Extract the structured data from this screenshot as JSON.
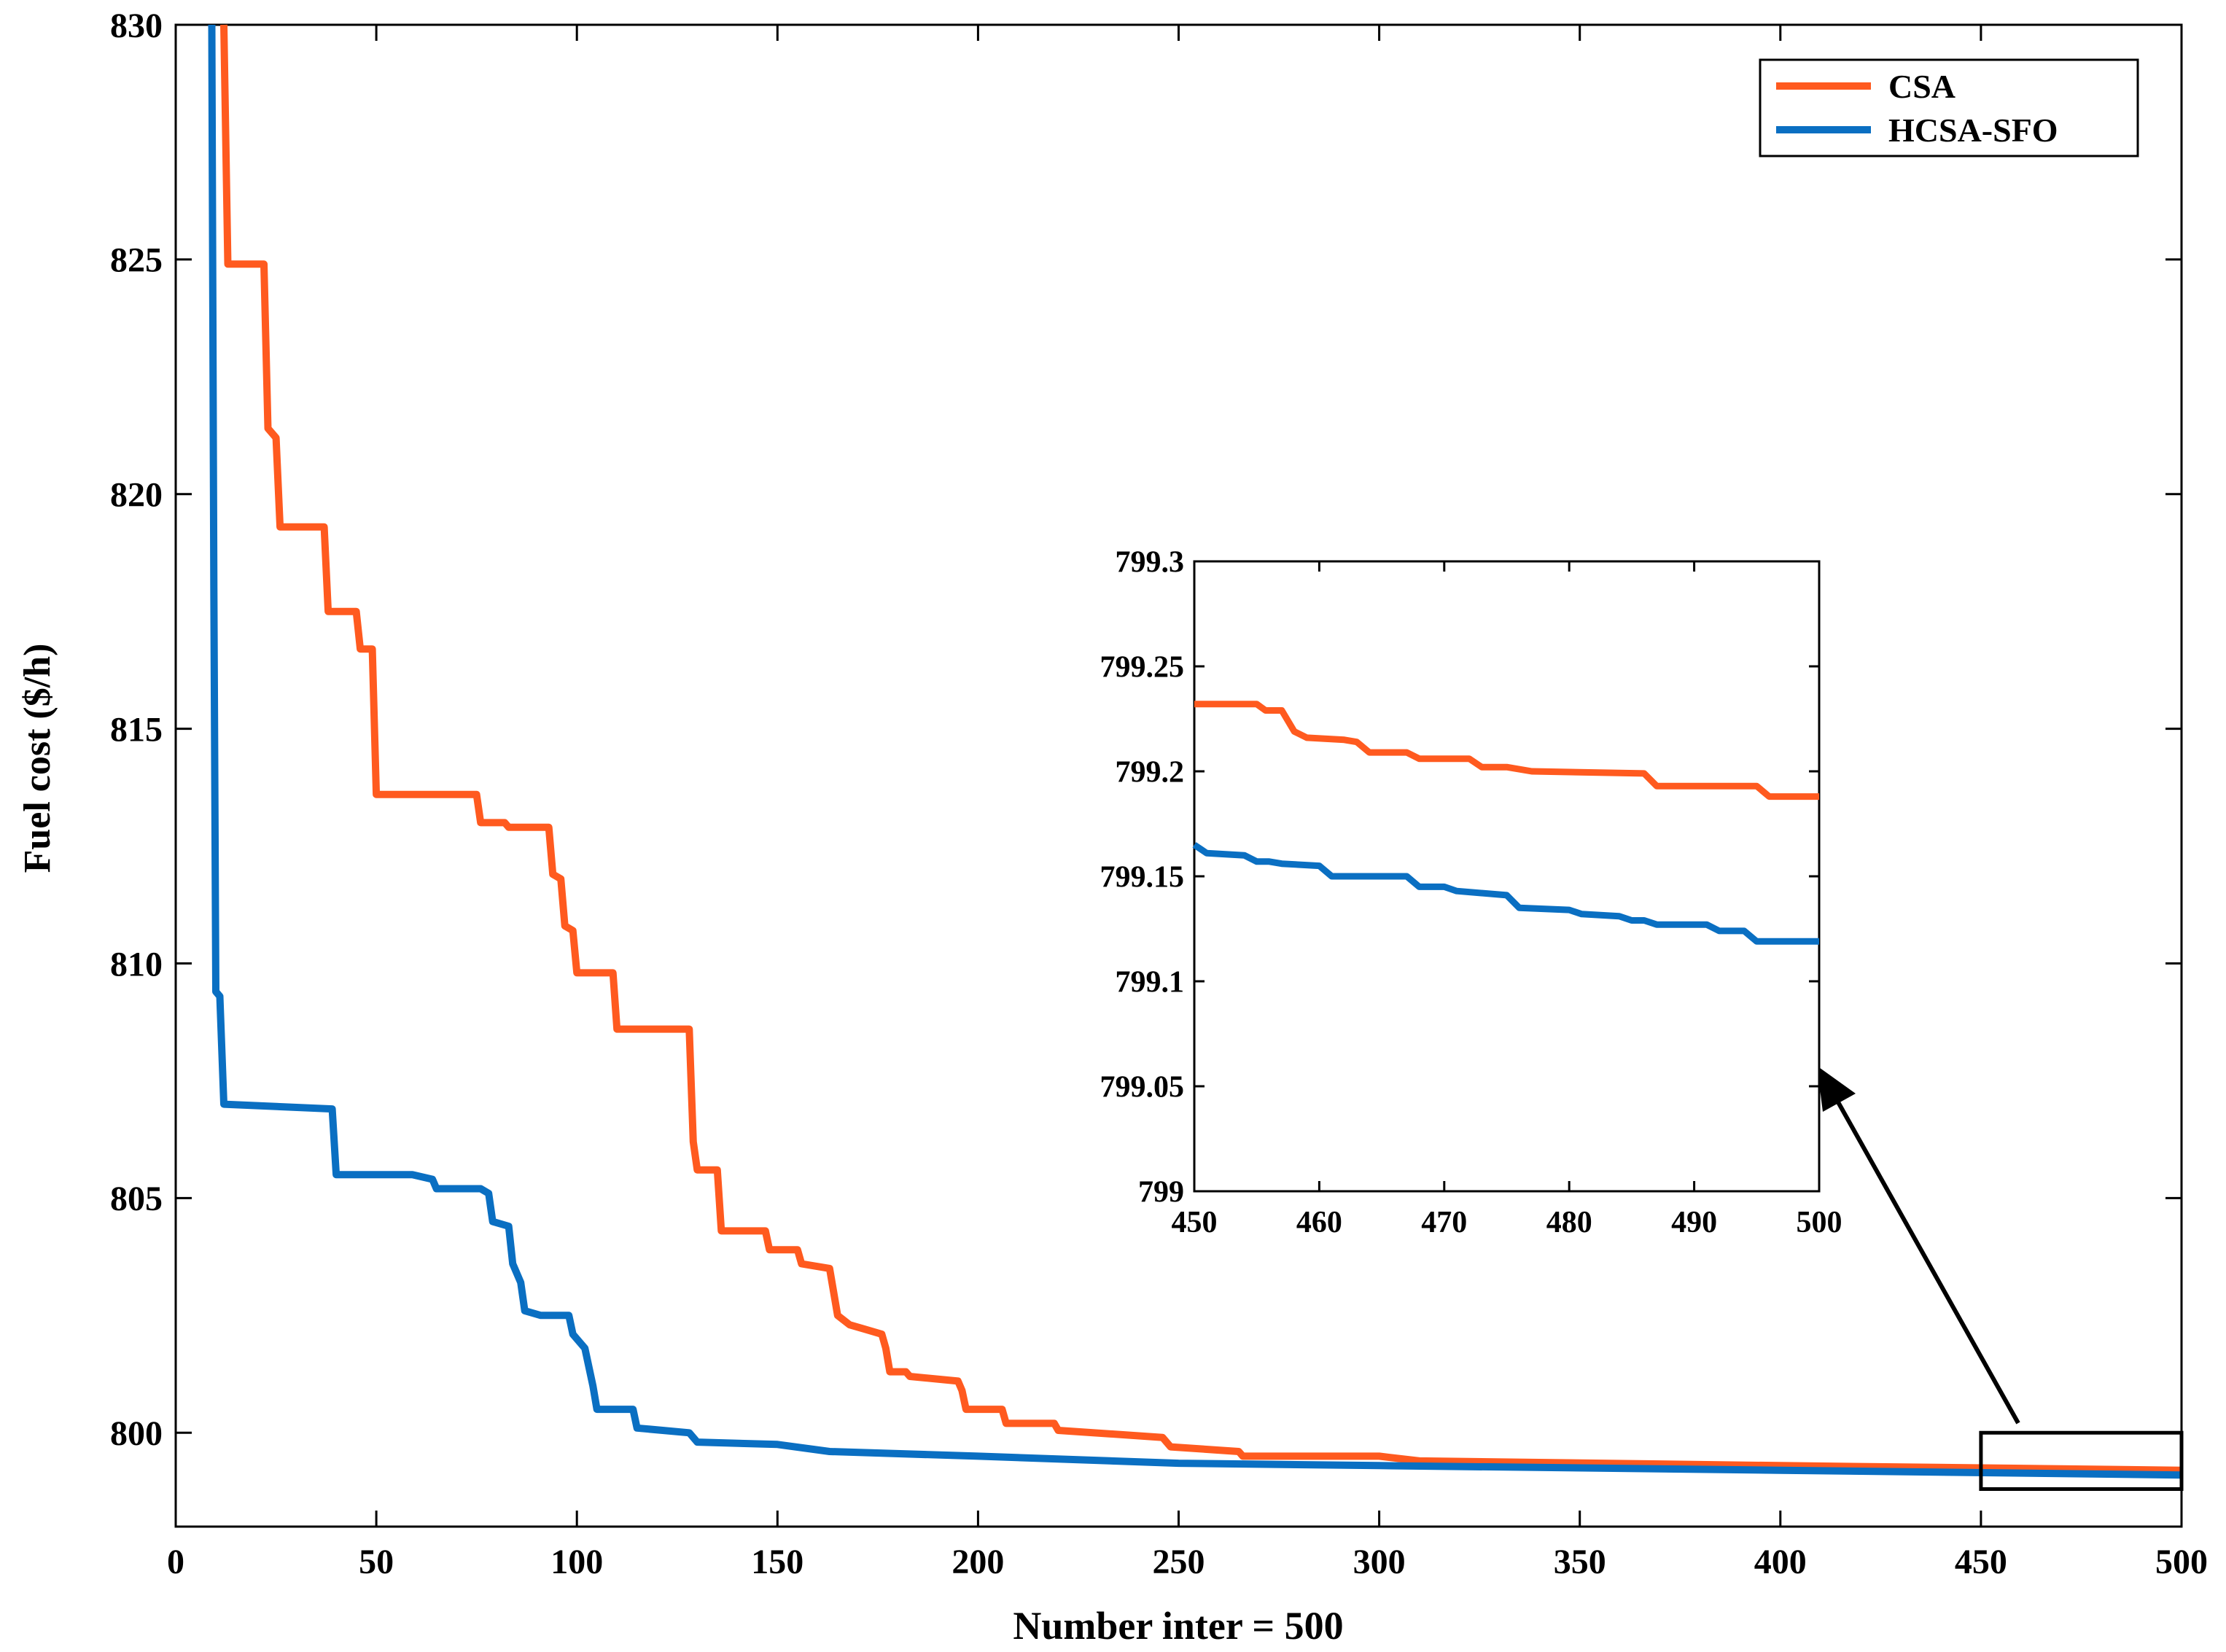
{
  "chart_data": [
    {
      "id": "main",
      "type": "line",
      "title": "",
      "xlabel": "Number inter = 500",
      "ylabel": "Fuel cost ($/h)",
      "xlim": [
        0,
        500
      ],
      "ylim": [
        798,
        830
      ],
      "xticks": [
        0,
        50,
        100,
        150,
        200,
        250,
        300,
        350,
        400,
        450,
        500
      ],
      "yticks": [
        800,
        805,
        810,
        815,
        820,
        825,
        830
      ],
      "legend_position": "top-right",
      "grid": false,
      "series": [
        {
          "name": "CSA",
          "color": "#ff5a1f",
          "points": [
            [
              12,
              830
            ],
            [
              13,
              824.9
            ],
            [
              22,
              824.9
            ],
            [
              23,
              821.4
            ],
            [
              25,
              821.2
            ],
            [
              26,
              819.3
            ],
            [
              37,
              819.3
            ],
            [
              38,
              817.5
            ],
            [
              45,
              817.5
            ],
            [
              46,
              816.7
            ],
            [
              49,
              816.7
            ],
            [
              50,
              813.6
            ],
            [
              75,
              813.6
            ],
            [
              76,
              813.0
            ],
            [
              82,
              813.0
            ],
            [
              83,
              812.9
            ],
            [
              93,
              812.9
            ],
            [
              94,
              811.9
            ],
            [
              96,
              811.8
            ],
            [
              97,
              810.8
            ],
            [
              99,
              810.7
            ],
            [
              100,
              809.8
            ],
            [
              109,
              809.8
            ],
            [
              110,
              808.6
            ],
            [
              128,
              808.6
            ],
            [
              129,
              806.2
            ],
            [
              130,
              805.6
            ],
            [
              135,
              805.6
            ],
            [
              136,
              804.3
            ],
            [
              147,
              804.3
            ],
            [
              148,
              803.9
            ],
            [
              155,
              803.9
            ],
            [
              156,
              803.6
            ],
            [
              163,
              803.5
            ],
            [
              164,
              803.0
            ],
            [
              165,
              802.5
            ],
            [
              168,
              802.3
            ],
            [
              172,
              802.2
            ],
            [
              176,
              802.1
            ],
            [
              177,
              801.8
            ],
            [
              178,
              801.3
            ],
            [
              182,
              801.3
            ],
            [
              183,
              801.2
            ],
            [
              195,
              801.1
            ],
            [
              196,
              800.9
            ],
            [
              197,
              800.5
            ],
            [
              206,
              800.5
            ],
            [
              207,
              800.2
            ],
            [
              219,
              800.2
            ],
            [
              220,
              800.05
            ],
            [
              246,
              799.9
            ],
            [
              248,
              799.7
            ],
            [
              265,
              799.6
            ],
            [
              266,
              799.5
            ],
            [
              300,
              799.5
            ],
            [
              310,
              799.4
            ],
            [
              400,
              799.3
            ],
            [
              500,
              799.2
            ]
          ]
        },
        {
          "name": "HCSA-SFO",
          "color": "#0a6fc2",
          "points": [
            [
              9,
              830
            ],
            [
              9.5,
              818
            ],
            [
              10,
              809.4
            ],
            [
              11,
              809.3
            ],
            [
              12,
              807.0
            ],
            [
              39,
              806.9
            ],
            [
              40,
              805.5
            ],
            [
              59,
              805.5
            ],
            [
              64,
              805.4
            ],
            [
              65,
              805.2
            ],
            [
              76,
              805.2
            ],
            [
              78,
              805.1
            ],
            [
              79,
              804.5
            ],
            [
              83,
              804.4
            ],
            [
              84,
              803.6
            ],
            [
              86,
              803.2
            ],
            [
              87,
              802.6
            ],
            [
              91,
              802.5
            ],
            [
              98,
              802.5
            ],
            [
              99,
              802.1
            ],
            [
              102,
              801.8
            ],
            [
              104,
              801.0
            ],
            [
              105,
              800.5
            ],
            [
              114,
              800.5
            ],
            [
              115,
              800.1
            ],
            [
              128,
              800.0
            ],
            [
              130,
              799.8
            ],
            [
              150,
              799.75
            ],
            [
              163,
              799.6
            ],
            [
              200,
              799.5
            ],
            [
              250,
              799.35
            ],
            [
              300,
              799.3
            ],
            [
              400,
              799.2
            ],
            [
              500,
              799.1
            ]
          ]
        }
      ],
      "zoom_box": {
        "xlim": [
          450,
          500
        ],
        "ylim": [
          798.8,
          800
        ]
      }
    },
    {
      "id": "inset",
      "type": "line",
      "title": "",
      "xlim": [
        450,
        500
      ],
      "ylim": [
        799,
        799.3
      ],
      "xticks": [
        450,
        460,
        470,
        480,
        490,
        500
      ],
      "yticks": [
        799,
        799.05,
        799.1,
        799.15,
        799.2,
        799.25,
        799.3
      ],
      "ytick_labels": [
        "799",
        "799.05",
        "799.1",
        "799.15",
        "799.2",
        "799.25",
        "799.3"
      ],
      "series": [
        {
          "name": "CSA",
          "color": "#ff5a1f",
          "points": [
            [
              450,
              799.232
            ],
            [
              455,
              799.232
            ],
            [
              455.7,
              799.229
            ],
            [
              457,
              799.229
            ],
            [
              458,
              799.219
            ],
            [
              459,
              799.216
            ],
            [
              462,
              799.215
            ],
            [
              463,
              799.214
            ],
            [
              464,
              799.209
            ],
            [
              467,
              799.209
            ],
            [
              468,
              799.206
            ],
            [
              472,
              799.206
            ],
            [
              473,
              799.202
            ],
            [
              475,
              799.202
            ],
            [
              477,
              799.2
            ],
            [
              486,
              799.199
            ],
            [
              487,
              799.193
            ],
            [
              495,
              799.193
            ],
            [
              496,
              799.188
            ],
            [
              500,
              799.188
            ]
          ]
        },
        {
          "name": "HCSA-SFO",
          "color": "#0a6fc2",
          "points": [
            [
              450,
              799.165
            ],
            [
              451,
              799.161
            ],
            [
              454,
              799.16
            ],
            [
              455,
              799.157
            ],
            [
              456,
              799.157
            ],
            [
              457,
              799.156
            ],
            [
              460,
              799.155
            ],
            [
              461,
              799.15
            ],
            [
              467,
              799.15
            ],
            [
              468,
              799.145
            ],
            [
              470,
              799.145
            ],
            [
              471,
              799.143
            ],
            [
              475,
              799.141
            ],
            [
              476,
              799.135
            ],
            [
              480,
              799.134
            ],
            [
              481,
              799.132
            ],
            [
              484,
              799.131
            ],
            [
              485,
              799.129
            ],
            [
              486,
              799.129
            ],
            [
              487,
              799.127
            ],
            [
              491,
              799.127
            ],
            [
              492,
              799.124
            ],
            [
              494,
              799.124
            ],
            [
              495,
              799.119
            ],
            [
              500,
              799.119
            ]
          ]
        }
      ]
    }
  ]
}
